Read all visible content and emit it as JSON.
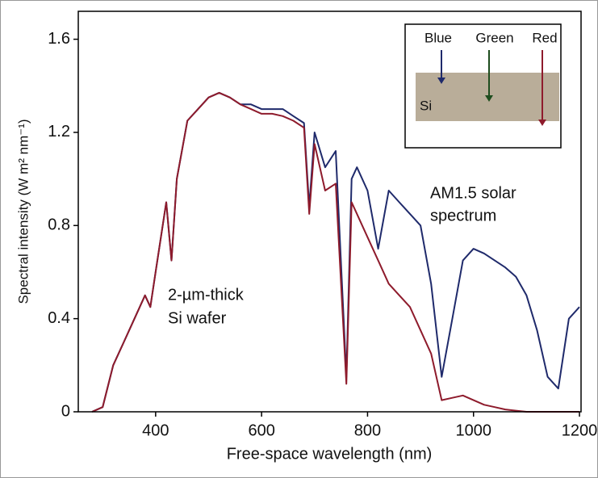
{
  "chart_data": {
    "type": "line",
    "x_label": "Free-space wavelength (nm)",
    "y_label": "Spectral intensity (W m² nm⁻¹)",
    "x": [
      280,
      300,
      320,
      340,
      360,
      380,
      390,
      400,
      420,
      430,
      440,
      460,
      480,
      500,
      520,
      540,
      560,
      580,
      600,
      620,
      640,
      660,
      680,
      690,
      700,
      720,
      740,
      760,
      770,
      780,
      800,
      820,
      840,
      860,
      880,
      900,
      920,
      940,
      960,
      980,
      1000,
      1020,
      1040,
      1060,
      1080,
      1100,
      1120,
      1140,
      1160,
      1180,
      1200
    ],
    "series": [
      {
        "name": "AM1.5 solar spectrum",
        "color": "#1f2a6b",
        "values": [
          0,
          0.02,
          0.2,
          0.3,
          0.4,
          0.5,
          0.45,
          0.6,
          0.9,
          0.65,
          1.0,
          1.25,
          1.3,
          1.35,
          1.37,
          1.35,
          1.32,
          1.32,
          1.3,
          1.3,
          1.3,
          1.27,
          1.24,
          0.88,
          1.2,
          1.05,
          1.12,
          0.15,
          1.0,
          1.05,
          0.95,
          0.7,
          0.95,
          0.9,
          0.85,
          0.8,
          0.55,
          0.15,
          0.4,
          0.65,
          0.7,
          0.68,
          0.65,
          0.62,
          0.58,
          0.5,
          0.35,
          0.15,
          0.1,
          0.4,
          0.45
        ]
      },
      {
        "name": "2-µm-thick Si wafer",
        "color": "#8e1b2c",
        "values": [
          0,
          0.02,
          0.2,
          0.3,
          0.4,
          0.5,
          0.45,
          0.6,
          0.9,
          0.65,
          1.0,
          1.25,
          1.3,
          1.35,
          1.37,
          1.35,
          1.32,
          1.3,
          1.28,
          1.28,
          1.27,
          1.25,
          1.22,
          0.85,
          1.15,
          0.95,
          0.98,
          0.12,
          0.9,
          0.85,
          0.75,
          0.65,
          0.55,
          0.5,
          0.45,
          0.35,
          0.25,
          0.05,
          0.06,
          0.07,
          0.05,
          0.03,
          0.02,
          0.01,
          0.005,
          0,
          0,
          0,
          0,
          0,
          0
        ]
      }
    ],
    "xlim": [
      254,
      1203
    ],
    "ylim": [
      0,
      1.72
    ],
    "xticks": [
      400,
      600,
      800,
      1000,
      1200
    ],
    "yticks": [
      0,
      0.4,
      0.8,
      1.2,
      1.6
    ],
    "annotations": [
      "2-µm-thick",
      "Si wafer",
      "AM1.5 solar",
      "spectrum"
    ],
    "inset": {
      "labels": [
        "Blue",
        "Green",
        "Red"
      ],
      "material": "Si"
    }
  }
}
